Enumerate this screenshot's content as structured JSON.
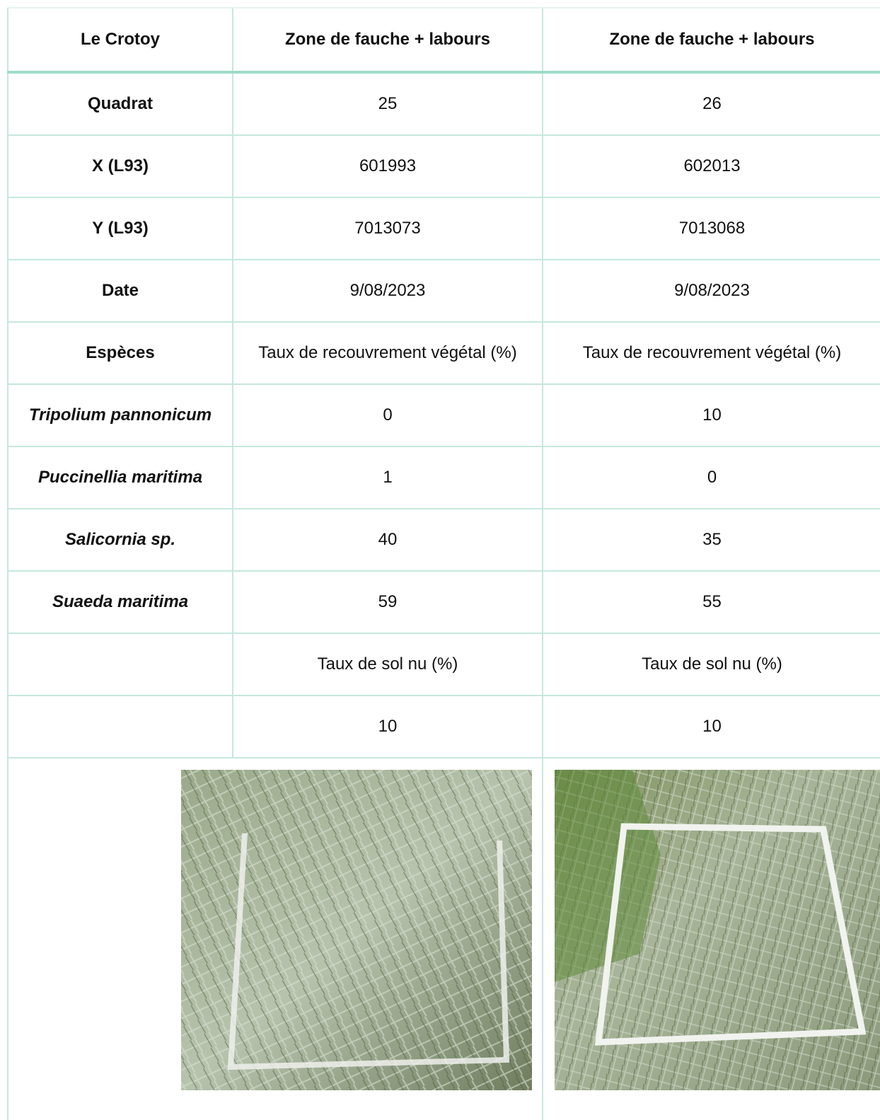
{
  "table": {
    "header": [
      "Le Crotoy",
      "Zone de fauche + labours",
      "Zone de fauche + labours"
    ],
    "rows": [
      [
        "Quadrat",
        25,
        26
      ],
      [
        "X (L93)",
        601993,
        602013
      ],
      [
        "Y (L93)",
        7013073,
        7013068
      ],
      [
        "Date",
        "9/08/2023",
        "9/08/2023"
      ],
      [
        "Espèces",
        "Taux de recouvrement végétal (%)",
        "Taux de recouvrement végétal (%)"
      ],
      [
        "Tripolium pannonicum",
        0,
        10
      ],
      [
        "Puccinellia maritima",
        1,
        0
      ],
      [
        "Salicornia sp.",
        40,
        35
      ],
      [
        "Suaeda maritima",
        59,
        55
      ],
      [
        null,
        "Taux de sol nu (%)",
        "Taux de sol nu (%)"
      ],
      [
        null,
        10,
        10
      ]
    ]
  }
}
